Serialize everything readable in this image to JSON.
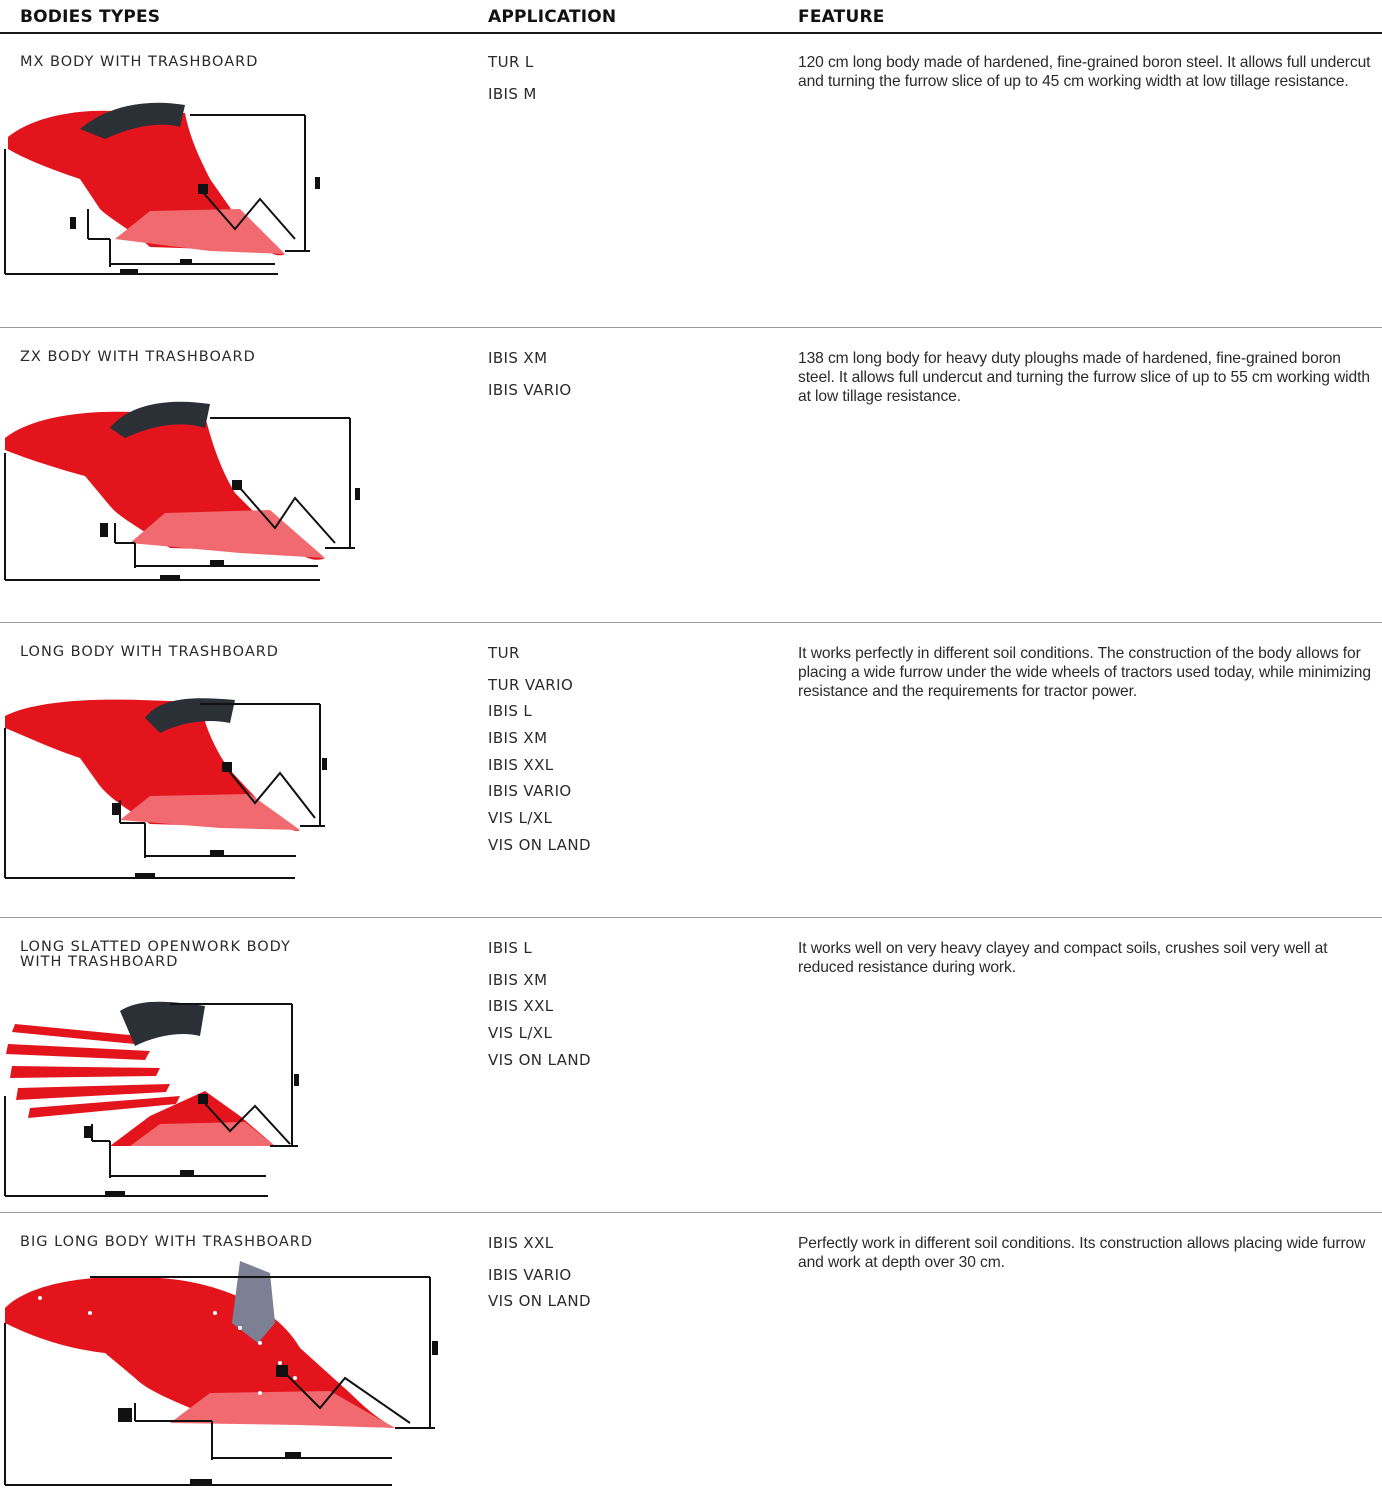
{
  "header": {
    "bodies_types": "BODIES TYPES",
    "application": "APPLICATION",
    "feature": "FEATURE"
  },
  "rows": [
    {
      "name": "MX BODY WITH TRASHBOARD",
      "applications": [
        "TUR L",
        "IBIS M"
      ],
      "feature": "120 cm long body made of hardened, fine-grained boron steel. It allows full undercut and turning the furrow slice of up to 45 cm working width at low tillage resistance."
    },
    {
      "name": "ZX BODY WITH TRASHBOARD",
      "applications": [
        "IBIS XM",
        "IBIS VARIO"
      ],
      "feature": "138 cm long body for heavy duty ploughs made of hardened, fine-grained boron steel. It allows full undercut and turning the furrow slice of up to 55 cm working width at low tillage resistance."
    },
    {
      "name": "LONG BODY WITH TRASHBOARD",
      "applications": [
        "TUR",
        "TUR VARIO",
        "IBIS L",
        "IBIS XM",
        "IBIS XXL",
        "IBIS VARIO",
        "VIS L/XL",
        "VIS ON LAND"
      ],
      "feature": "It works perfectly in different soil conditions. The construction of the body allows for placing a wide furrow under the wide wheels of tractors used today, while minimizing resistance and the requirements for tractor power."
    },
    {
      "name": "LONG SLATTED OPENWORK BODY WITH TRASHBOARD",
      "applications": [
        "IBIS L",
        "IBIS XM",
        "IBIS XXL",
        "VIS L/XL",
        "VIS ON LAND"
      ],
      "feature": "It works well on very heavy clayey and compact soils, crushes soil very well at reduced resistance during work."
    },
    {
      "name": "BIG LONG BODY WITH TRASHBOARD",
      "applications": [
        "IBIS XXL",
        "IBIS VARIO",
        "VIS ON LAND"
      ],
      "feature": "Perfectly work in different soil conditions. Its construction allows placing wide furrow and work at depth over 30 cm."
    }
  ],
  "colors": {
    "body_red": "#e3141c",
    "body_light": "#f04a52",
    "trashboard": "#2b2f36",
    "dimension_line": "#111111",
    "divider": "#9a9a9a"
  },
  "icons": [
    "plough-body-icon",
    "dimension-lines-icon"
  ]
}
